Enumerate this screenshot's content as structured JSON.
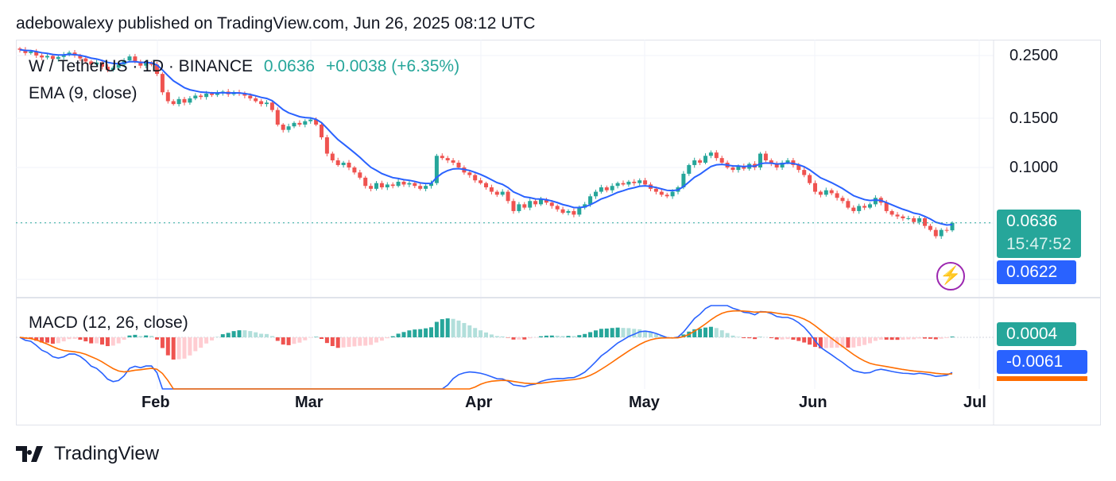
{
  "header": "adebowalexy published on TradingView.com, Jun 26, 2025 08:12 UTC",
  "legend": {
    "symbol": "W / TetherUS · 1D · BINANCE",
    "price": "0.0636",
    "change": "+0.0038 (+6.35%)",
    "ema": "EMA (9, close)",
    "macd": "MACD (12, 26, close)"
  },
  "tags": {
    "last_price": "0.0636",
    "countdown": "15:47:52",
    "ema_value": "0.0622",
    "macd_hist": "0.0004",
    "macd_line": "-0.0061"
  },
  "footer": {
    "brand": "TradingView"
  },
  "colors": {
    "up": "#26a69a",
    "down": "#ef5350",
    "ema": "#2962ff",
    "signal": "#ff6d00",
    "hist_up_light": "#b2dfdb",
    "hist_down_light": "#ffcdd2"
  },
  "chart_data": {
    "type": "candlestick",
    "scale": "log",
    "start_date": "2025-01-07",
    "end_date": "2025-06-26",
    "y_ticks": [
      "0.2500",
      "0.1500",
      "0.1000"
    ],
    "x_ticks": [
      "Feb",
      "Mar",
      "Apr",
      "May",
      "Jun",
      "Jul"
    ],
    "closes": [
      0.262,
      0.255,
      0.258,
      0.25,
      0.246,
      0.249,
      0.243,
      0.247,
      0.252,
      0.256,
      0.25,
      0.244,
      0.238,
      0.232,
      0.236,
      0.228,
      0.222,
      0.226,
      0.232,
      0.24,
      0.248,
      0.238,
      0.23,
      0.236,
      0.232,
      0.215,
      0.185,
      0.172,
      0.168,
      0.175,
      0.17,
      0.176,
      0.18,
      0.178,
      0.183,
      0.181,
      0.184,
      0.186,
      0.182,
      0.185,
      0.183,
      0.18,
      0.176,
      0.172,
      0.168,
      0.17,
      0.16,
      0.142,
      0.136,
      0.14,
      0.144,
      0.142,
      0.146,
      0.148,
      0.142,
      0.128,
      0.112,
      0.106,
      0.102,
      0.104,
      0.1,
      0.096,
      0.092,
      0.086,
      0.084,
      0.088,
      0.085,
      0.087,
      0.086,
      0.089,
      0.087,
      0.088,
      0.086,
      0.084,
      0.086,
      0.088,
      0.11,
      0.108,
      0.106,
      0.104,
      0.1,
      0.096,
      0.094,
      0.09,
      0.088,
      0.085,
      0.082,
      0.08,
      0.082,
      0.076,
      0.07,
      0.074,
      0.072,
      0.076,
      0.074,
      0.077,
      0.075,
      0.073,
      0.071,
      0.069,
      0.07,
      0.068,
      0.072,
      0.074,
      0.079,
      0.082,
      0.085,
      0.083,
      0.086,
      0.088,
      0.087,
      0.089,
      0.088,
      0.09,
      0.087,
      0.084,
      0.082,
      0.08,
      0.079,
      0.082,
      0.085,
      0.095,
      0.102,
      0.106,
      0.104,
      0.11,
      0.113,
      0.108,
      0.104,
      0.1,
      0.098,
      0.101,
      0.099,
      0.103,
      0.1,
      0.112,
      0.106,
      0.103,
      0.1,
      0.104,
      0.106,
      0.102,
      0.098,
      0.094,
      0.088,
      0.082,
      0.08,
      0.083,
      0.081,
      0.078,
      0.076,
      0.072,
      0.07,
      0.073,
      0.072,
      0.074,
      0.078,
      0.075,
      0.07,
      0.068,
      0.067,
      0.066,
      0.066,
      0.064,
      0.066,
      0.062,
      0.06,
      0.057,
      0.06,
      0.0598,
      0.0636
    ],
    "indicators": [
      "EMA (9, close)",
      "MACD (12, 26, close)"
    ]
  }
}
